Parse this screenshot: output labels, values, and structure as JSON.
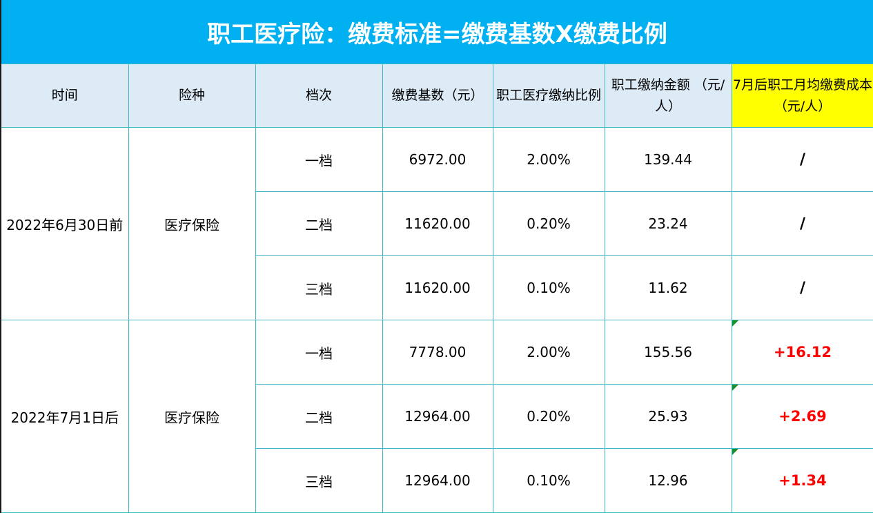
{
  "title": "职工医疗险：缴费标准=缴费基数X缴费比例",
  "headers": {
    "time": "时间",
    "type": "险种",
    "tier": "档次",
    "base": "缴费基数（元）",
    "ratio": "职工医疗缴纳比例",
    "amount": "职工缴纳金额 （元/人）",
    "cost": "7月后职工月均缴费成本（元/人）"
  },
  "groups": [
    {
      "time": "2022年6月30日前",
      "type": "医疗保险",
      "rows": [
        {
          "tier": "一档",
          "base": "6972.00",
          "ratio": "2.00%",
          "amount": "139.44",
          "cost": "/"
        },
        {
          "tier": "二档",
          "base": "11620.00",
          "ratio": "0.20%",
          "amount": "23.24",
          "cost": "/"
        },
        {
          "tier": "三档",
          "base": "11620.00",
          "ratio": "0.10%",
          "amount": "11.62",
          "cost": "/"
        }
      ]
    },
    {
      "time": "2022年7月1日后",
      "type": "医疗保险",
      "rows": [
        {
          "tier": "一档",
          "base": "7778.00",
          "ratio": "2.00%",
          "amount": "155.56",
          "cost": "+16.12"
        },
        {
          "tier": "二档",
          "base": "12964.00",
          "ratio": "0.20%",
          "amount": "25.93",
          "cost": "+2.69"
        },
        {
          "tier": "三档",
          "base": "12964.00",
          "ratio": "0.10%",
          "amount": "12.96",
          "cost": "+1.34"
        }
      ]
    }
  ],
  "colors": {
    "title_bg": "#00b0f0",
    "header_bg": "#ddebf7",
    "highlight": "#ffff00",
    "increase": "#ff0000"
  }
}
